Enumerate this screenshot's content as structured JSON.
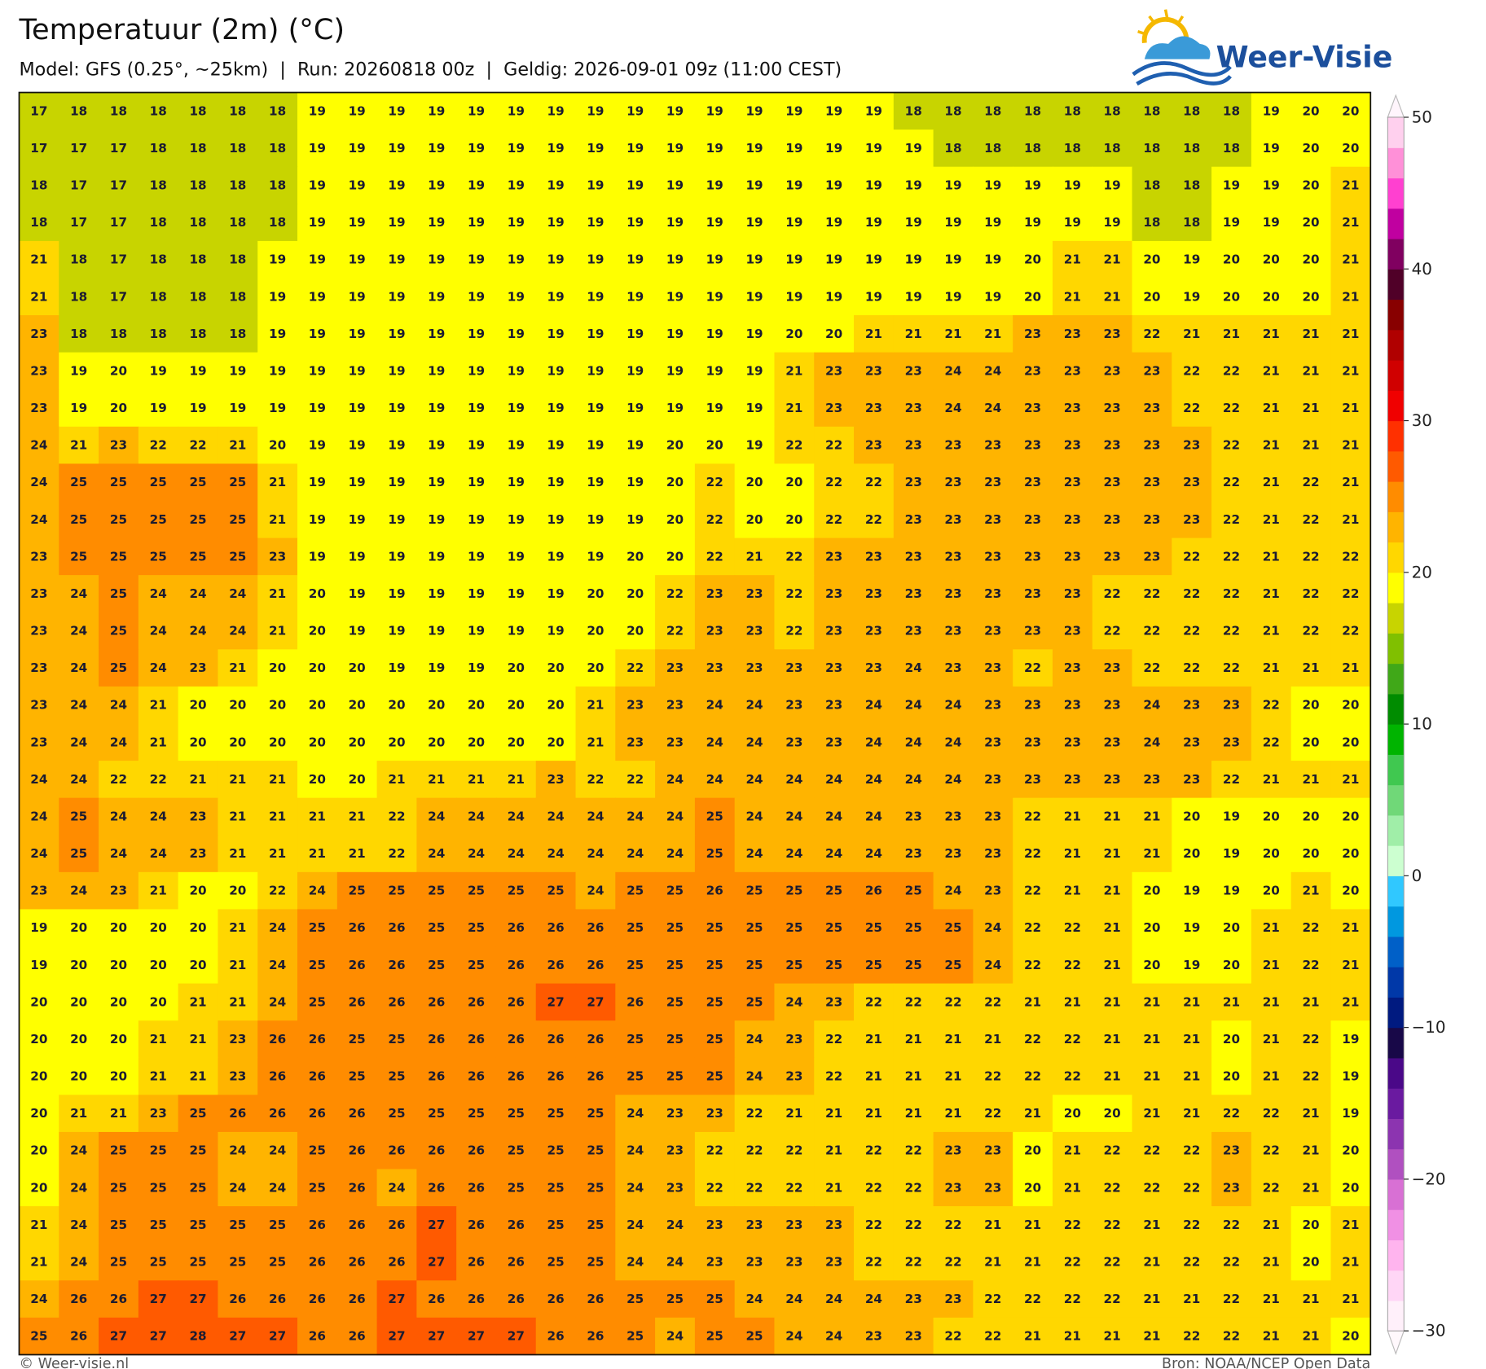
{
  "header": {
    "title": "Temperatuur (2m) (°C)",
    "subtitle": "Model: GFS (0.25°, ~25km)  |  Run: 20260818 00z  |  Geldig: 2026-09-01 09z (11:00 CEST)",
    "logo": "Weer-Visie"
  },
  "map": {
    "grid": [
      [
        17,
        18,
        18,
        18,
        18,
        18,
        18,
        19,
        19,
        19,
        19,
        19,
        19,
        19,
        19,
        19,
        19,
        19,
        19,
        19,
        19,
        19,
        18,
        18,
        18,
        18,
        18,
        18,
        18,
        18,
        18,
        19,
        20,
        20
      ],
      [
        17,
        17,
        17,
        18,
        18,
        18,
        18,
        19,
        19,
        19,
        19,
        19,
        19,
        19,
        19,
        19,
        19,
        19,
        19,
        19,
        19,
        19,
        19,
        18,
        18,
        18,
        18,
        18,
        18,
        18,
        18,
        19,
        20,
        20
      ],
      [
        18,
        17,
        17,
        18,
        18,
        18,
        18,
        19,
        19,
        19,
        19,
        19,
        19,
        19,
        19,
        19,
        19,
        19,
        19,
        19,
        19,
        19,
        19,
        19,
        19,
        19,
        19,
        19,
        18,
        18,
        19,
        19,
        20,
        21
      ],
      [
        18,
        17,
        17,
        18,
        18,
        18,
        18,
        19,
        19,
        19,
        19,
        19,
        19,
        19,
        19,
        19,
        19,
        19,
        19,
        19,
        19,
        19,
        19,
        19,
        19,
        19,
        19,
        19,
        18,
        18,
        19,
        19,
        20,
        21
      ],
      [
        21,
        18,
        17,
        18,
        18,
        18,
        19,
        19,
        19,
        19,
        19,
        19,
        19,
        19,
        19,
        19,
        19,
        19,
        19,
        19,
        19,
        19,
        19,
        19,
        19,
        20,
        21,
        21,
        20,
        19,
        20,
        20,
        20,
        21
      ],
      [
        21,
        18,
        17,
        18,
        18,
        18,
        19,
        19,
        19,
        19,
        19,
        19,
        19,
        19,
        19,
        19,
        19,
        19,
        19,
        19,
        19,
        19,
        19,
        19,
        19,
        20,
        21,
        21,
        20,
        19,
        20,
        20,
        20,
        21
      ],
      [
        23,
        18,
        18,
        18,
        18,
        18,
        19,
        19,
        19,
        19,
        19,
        19,
        19,
        19,
        19,
        19,
        19,
        19,
        19,
        20,
        20,
        21,
        21,
        21,
        21,
        23,
        23,
        23,
        22,
        21,
        21,
        21,
        21,
        21
      ],
      [
        23,
        19,
        20,
        19,
        19,
        19,
        19,
        19,
        19,
        19,
        19,
        19,
        19,
        19,
        19,
        19,
        19,
        19,
        19,
        21,
        23,
        23,
        23,
        24,
        24,
        23,
        23,
        23,
        23,
        22,
        22,
        21,
        21,
        21
      ],
      [
        23,
        19,
        20,
        19,
        19,
        19,
        19,
        19,
        19,
        19,
        19,
        19,
        19,
        19,
        19,
        19,
        19,
        19,
        19,
        21,
        23,
        23,
        23,
        24,
        24,
        23,
        23,
        23,
        23,
        22,
        22,
        21,
        21,
        21
      ],
      [
        24,
        21,
        23,
        22,
        22,
        21,
        20,
        19,
        19,
        19,
        19,
        19,
        19,
        19,
        19,
        19,
        20,
        20,
        19,
        22,
        22,
        23,
        23,
        23,
        23,
        23,
        23,
        23,
        23,
        23,
        22,
        21,
        21,
        21
      ],
      [
        24,
        25,
        25,
        25,
        25,
        25,
        21,
        19,
        19,
        19,
        19,
        19,
        19,
        19,
        19,
        19,
        20,
        22,
        20,
        20,
        22,
        22,
        23,
        23,
        23,
        23,
        23,
        23,
        23,
        23,
        22,
        21,
        22,
        21
      ],
      [
        24,
        25,
        25,
        25,
        25,
        25,
        21,
        19,
        19,
        19,
        19,
        19,
        19,
        19,
        19,
        19,
        20,
        22,
        20,
        20,
        22,
        22,
        23,
        23,
        23,
        23,
        23,
        23,
        23,
        23,
        22,
        21,
        22,
        21
      ],
      [
        23,
        25,
        25,
        25,
        25,
        25,
        23,
        19,
        19,
        19,
        19,
        19,
        19,
        19,
        19,
        20,
        20,
        22,
        21,
        22,
        23,
        23,
        23,
        23,
        23,
        23,
        23,
        23,
        23,
        22,
        22,
        21,
        22,
        22
      ],
      [
        23,
        24,
        25,
        24,
        24,
        24,
        21,
        20,
        19,
        19,
        19,
        19,
        19,
        19,
        20,
        20,
        22,
        23,
        23,
        22,
        23,
        23,
        23,
        23,
        23,
        23,
        23,
        22,
        22,
        22,
        22,
        21,
        22,
        22
      ],
      [
        23,
        24,
        25,
        24,
        24,
        24,
        21,
        20,
        19,
        19,
        19,
        19,
        19,
        19,
        20,
        20,
        22,
        23,
        23,
        22,
        23,
        23,
        23,
        23,
        23,
        23,
        23,
        22,
        22,
        22,
        22,
        21,
        22,
        22
      ],
      [
        23,
        24,
        25,
        24,
        23,
        21,
        20,
        20,
        20,
        19,
        19,
        19,
        20,
        20,
        20,
        22,
        23,
        23,
        23,
        23,
        23,
        23,
        24,
        23,
        23,
        22,
        23,
        23,
        22,
        22,
        22,
        21,
        21,
        21
      ],
      [
        23,
        24,
        24,
        21,
        20,
        20,
        20,
        20,
        20,
        20,
        20,
        20,
        20,
        20,
        21,
        23,
        23,
        24,
        24,
        23,
        23,
        24,
        24,
        24,
        23,
        23,
        23,
        23,
        24,
        23,
        23,
        22,
        20,
        20
      ],
      [
        23,
        24,
        24,
        21,
        20,
        20,
        20,
        20,
        20,
        20,
        20,
        20,
        20,
        20,
        21,
        23,
        23,
        24,
        24,
        23,
        23,
        24,
        24,
        24,
        23,
        23,
        23,
        23,
        24,
        23,
        23,
        22,
        20,
        20
      ],
      [
        24,
        24,
        22,
        22,
        21,
        21,
        21,
        20,
        20,
        21,
        21,
        21,
        21,
        23,
        22,
        22,
        24,
        24,
        24,
        24,
        24,
        24,
        24,
        24,
        23,
        23,
        23,
        23,
        23,
        23,
        22,
        21,
        21,
        21
      ],
      [
        24,
        25,
        24,
        24,
        23,
        21,
        21,
        21,
        21,
        22,
        24,
        24,
        24,
        24,
        24,
        24,
        24,
        25,
        24,
        24,
        24,
        24,
        23,
        23,
        23,
        22,
        21,
        21,
        21,
        20,
        19,
        20,
        20,
        20
      ],
      [
        24,
        25,
        24,
        24,
        23,
        21,
        21,
        21,
        21,
        22,
        24,
        24,
        24,
        24,
        24,
        24,
        24,
        25,
        24,
        24,
        24,
        24,
        23,
        23,
        23,
        22,
        21,
        21,
        21,
        20,
        19,
        20,
        20,
        20
      ],
      [
        23,
        24,
        23,
        21,
        20,
        20,
        22,
        24,
        25,
        25,
        25,
        25,
        25,
        25,
        24,
        25,
        25,
        26,
        25,
        25,
        25,
        26,
        25,
        24,
        23,
        22,
        21,
        21,
        20,
        19,
        19,
        20,
        21,
        20
      ],
      [
        19,
        20,
        20,
        20,
        20,
        21,
        24,
        25,
        26,
        26,
        25,
        25,
        26,
        26,
        26,
        25,
        25,
        25,
        25,
        25,
        25,
        25,
        25,
        25,
        24,
        22,
        22,
        21,
        20,
        19,
        20,
        21,
        22,
        21
      ],
      [
        19,
        20,
        20,
        20,
        20,
        21,
        24,
        25,
        26,
        26,
        25,
        25,
        26,
        26,
        26,
        25,
        25,
        25,
        25,
        25,
        25,
        25,
        25,
        25,
        24,
        22,
        22,
        21,
        20,
        19,
        20,
        21,
        22,
        21
      ],
      [
        20,
        20,
        20,
        20,
        21,
        21,
        24,
        25,
        26,
        26,
        26,
        26,
        26,
        27,
        27,
        26,
        25,
        25,
        25,
        24,
        23,
        22,
        22,
        22,
        22,
        21,
        21,
        21,
        21,
        21,
        21,
        21,
        21,
        21
      ],
      [
        20,
        20,
        20,
        21,
        21,
        23,
        26,
        26,
        25,
        25,
        26,
        26,
        26,
        26,
        26,
        25,
        25,
        25,
        24,
        23,
        22,
        21,
        21,
        21,
        21,
        22,
        22,
        21,
        21,
        21,
        20,
        21,
        22,
        19
      ],
      [
        20,
        20,
        20,
        21,
        21,
        23,
        26,
        26,
        25,
        25,
        26,
        26,
        26,
        26,
        26,
        25,
        25,
        25,
        24,
        23,
        22,
        21,
        21,
        21,
        22,
        22,
        22,
        21,
        21,
        21,
        20,
        21,
        22,
        19
      ],
      [
        20,
        21,
        21,
        23,
        25,
        26,
        26,
        26,
        26,
        25,
        25,
        25,
        25,
        25,
        25,
        24,
        23,
        23,
        22,
        21,
        21,
        21,
        21,
        21,
        22,
        21,
        20,
        20,
        21,
        21,
        22,
        22,
        21,
        19
      ],
      [
        20,
        24,
        25,
        25,
        25,
        24,
        24,
        25,
        26,
        26,
        26,
        26,
        25,
        25,
        25,
        24,
        23,
        22,
        22,
        22,
        21,
        22,
        22,
        23,
        23,
        20,
        21,
        22,
        22,
        22,
        23,
        22,
        21,
        20
      ],
      [
        20,
        24,
        25,
        25,
        25,
        24,
        24,
        25,
        26,
        24,
        26,
        26,
        25,
        25,
        25,
        24,
        23,
        22,
        22,
        22,
        21,
        22,
        22,
        23,
        23,
        20,
        21,
        22,
        22,
        22,
        23,
        22,
        21,
        20
      ],
      [
        21,
        24,
        25,
        25,
        25,
        25,
        25,
        26,
        26,
        26,
        27,
        26,
        26,
        25,
        25,
        24,
        24,
        23,
        23,
        23,
        23,
        22,
        22,
        22,
        21,
        21,
        22,
        22,
        21,
        22,
        22,
        21,
        20,
        21
      ],
      [
        21,
        24,
        25,
        25,
        25,
        25,
        25,
        26,
        26,
        26,
        27,
        26,
        26,
        25,
        25,
        24,
        24,
        23,
        23,
        23,
        23,
        22,
        22,
        22,
        21,
        21,
        22,
        22,
        21,
        22,
        22,
        21,
        20,
        21
      ],
      [
        24,
        26,
        26,
        27,
        27,
        26,
        26,
        26,
        26,
        27,
        26,
        26,
        26,
        26,
        26,
        25,
        25,
        25,
        24,
        24,
        24,
        24,
        23,
        23,
        22,
        22,
        22,
        22,
        21,
        21,
        22,
        21,
        21,
        21
      ],
      [
        25,
        26,
        27,
        27,
        28,
        27,
        27,
        26,
        26,
        27,
        27,
        27,
        27,
        26,
        26,
        25,
        24,
        25,
        25,
        24,
        24,
        23,
        23,
        22,
        22,
        21,
        21,
        21,
        21,
        22,
        22,
        21,
        21,
        20
      ]
    ]
  },
  "colorbar": {
    "lim": [
      -30,
      50
    ],
    "ticks": [
      50,
      40,
      30,
      20,
      10,
      0,
      {
        "value": -10,
        "label": "−10"
      },
      {
        "value": -20,
        "label": "−20"
      },
      {
        "value": -30,
        "label": "−30"
      }
    ],
    "colors": [
      "#fff0fa",
      "#ffd6f6",
      "#ffb4ee",
      "#f090e4",
      "#d870d4",
      "#b050c0",
      "#8c34b0",
      "#6a1aa0",
      "#4a0888",
      "#180848",
      "#001a80",
      "#0038a8",
      "#0060c8",
      "#0098e0",
      "#30c8ff",
      "#ccffd0",
      "#a0eea8",
      "#70d878",
      "#40c850",
      "#00b400",
      "#008c00",
      "#40a818",
      "#80c000",
      "#c8d400",
      "#ffff00",
      "#ffd700",
      "#ffb400",
      "#ff8c00",
      "#ff5a00",
      "#ff3000",
      "#f00000",
      "#d00000",
      "#b00000",
      "#880000",
      "#500028",
      "#800060",
      "#c000a0",
      "#ff40d0",
      "#ff90d8",
      "#ffd0ee"
    ]
  },
  "footer": {
    "left": "© Weer-visie.nl",
    "right": "Bron: NOAA/NCEP Open Data"
  }
}
